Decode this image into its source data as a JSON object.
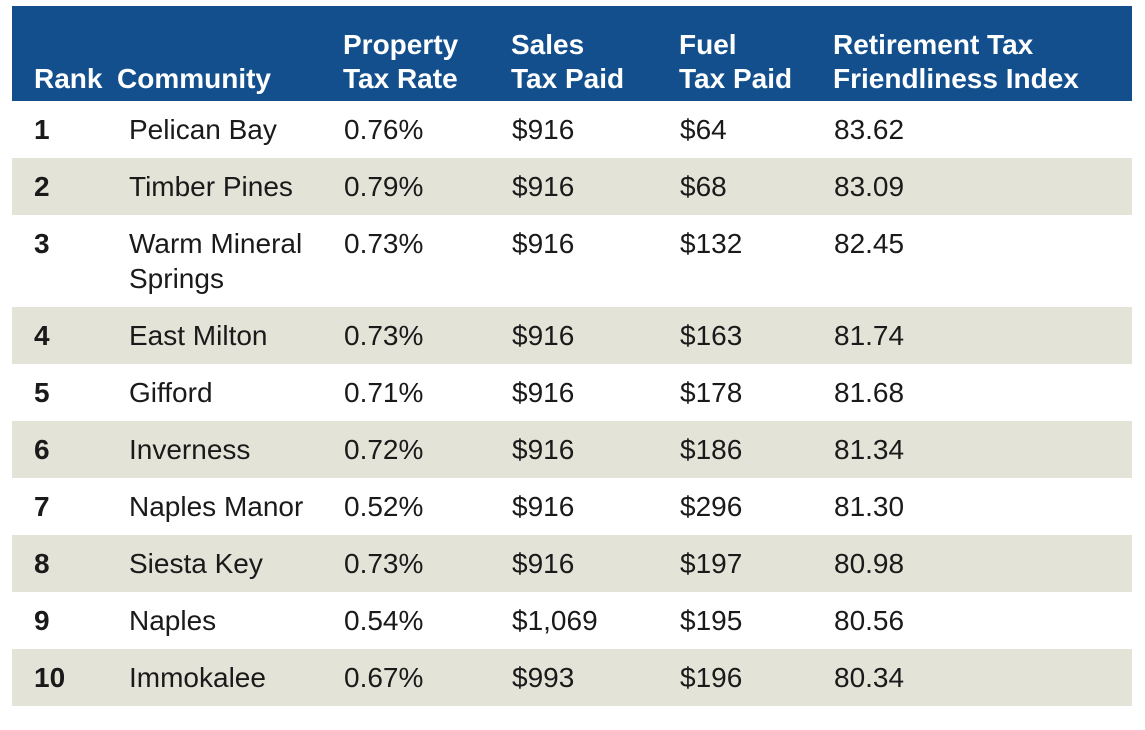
{
  "header": {
    "rank": [
      "",
      "Rank"
    ],
    "community": [
      "",
      "Community"
    ],
    "property_tax_rate": [
      "Property",
      "Tax Rate"
    ],
    "sales_tax_paid": [
      "Sales",
      "Tax Paid"
    ],
    "fuel_tax_paid": [
      "Fuel",
      "Tax Paid"
    ],
    "index": [
      "Retirement Tax",
      "Friendliness Index"
    ]
  },
  "rows": [
    {
      "rank": "1",
      "community": [
        "Pelican Bay",
        ""
      ],
      "property_tax_rate": "0.76%",
      "sales_tax_paid": "$916",
      "fuel_tax_paid": "$64",
      "index": "83.62"
    },
    {
      "rank": "2",
      "community": [
        "Timber Pines",
        ""
      ],
      "property_tax_rate": "0.79%",
      "sales_tax_paid": "$916",
      "fuel_tax_paid": "$68",
      "index": "83.09"
    },
    {
      "rank": "3",
      "community": [
        "Warm Mineral",
        "Springs"
      ],
      "property_tax_rate": "0.73%",
      "sales_tax_paid": "$916",
      "fuel_tax_paid": "$132",
      "index": "82.45"
    },
    {
      "rank": "4",
      "community": [
        "East Milton",
        ""
      ],
      "property_tax_rate": "0.73%",
      "sales_tax_paid": "$916",
      "fuel_tax_paid": "$163",
      "index": "81.74"
    },
    {
      "rank": "5",
      "community": [
        "Gifford",
        ""
      ],
      "property_tax_rate": "0.71%",
      "sales_tax_paid": "$916",
      "fuel_tax_paid": "$178",
      "index": "81.68"
    },
    {
      "rank": "6",
      "community": [
        "Inverness",
        ""
      ],
      "property_tax_rate": "0.72%",
      "sales_tax_paid": "$916",
      "fuel_tax_paid": "$186",
      "index": "81.34"
    },
    {
      "rank": "7",
      "community": [
        "Naples Manor",
        ""
      ],
      "property_tax_rate": "0.52%",
      "sales_tax_paid": "$916",
      "fuel_tax_paid": "$296",
      "index": "81.30"
    },
    {
      "rank": "8",
      "community": [
        "Siesta Key",
        ""
      ],
      "property_tax_rate": "0.73%",
      "sales_tax_paid": "$916",
      "fuel_tax_paid": "$197",
      "index": "80.98"
    },
    {
      "rank": "9",
      "community": [
        "Naples",
        ""
      ],
      "property_tax_rate": "0.54%",
      "sales_tax_paid": "$1,069",
      "fuel_tax_paid": "$195",
      "index": "80.56"
    },
    {
      "rank": "10",
      "community": [
        "Immokalee",
        ""
      ],
      "property_tax_rate": "0.67%",
      "sales_tax_paid": "$993",
      "fuel_tax_paid": "$196",
      "index": "80.34"
    }
  ],
  "colors": {
    "header_bg": "#124f8c",
    "header_text": "#ffffff",
    "shaded_row": "#e3e3d8",
    "row_text": "#1a1a1a"
  }
}
